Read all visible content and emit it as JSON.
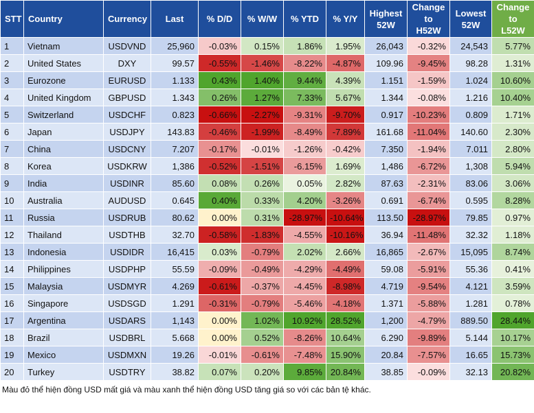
{
  "table": {
    "header": [
      "STT",
      "Country",
      "Currency",
      "Last",
      "% D/D",
      "% W/W",
      "% YTD",
      "% Y/Y",
      "Highest 52W",
      "Change to H52W",
      "Lowest 52W",
      "Change to L52W"
    ],
    "rows": [
      [
        "1",
        "Vietnam",
        "USDVND",
        "25,960",
        "-0.03%",
        "0.15%",
        "1.86%",
        "1.95%",
        "26,043",
        "-0.32%",
        "24,543",
        "5.77%"
      ],
      [
        "2",
        "United States",
        "DXY",
        "99.57",
        "-0.55%",
        "-1.46%",
        "-8.22%",
        "-4.87%",
        "109.96",
        "-9.45%",
        "98.28",
        "1.31%"
      ],
      [
        "3",
        "Eurozone",
        "EURUSD",
        "1.133",
        "0.43%",
        "1.40%",
        "9.44%",
        "4.39%",
        "1.151",
        "-1.59%",
        "1.024",
        "10.60%"
      ],
      [
        "4",
        "United Kingdom",
        "GBPUSD",
        "1.343",
        "0.26%",
        "1.27%",
        "7.33%",
        "5.67%",
        "1.344",
        "-0.08%",
        "1.216",
        "10.40%"
      ],
      [
        "5",
        "Switzerland",
        "USDCHF",
        "0.823",
        "-0.66%",
        "-2.27%",
        "-9.31%",
        "-9.70%",
        "0.917",
        "-10.23%",
        "0.809",
        "1.71%"
      ],
      [
        "6",
        "Japan",
        "USDJPY",
        "143.83",
        "-0.46%",
        "-1.99%",
        "-8.49%",
        "-7.89%",
        "161.68",
        "-11.04%",
        "140.60",
        "2.30%"
      ],
      [
        "7",
        "China",
        "USDCNY",
        "7.207",
        "-0.17%",
        "-0.01%",
        "-1.26%",
        "-0.42%",
        "7.350",
        "-1.94%",
        "7.011",
        "2.80%"
      ],
      [
        "8",
        "Korea",
        "USDKRW",
        "1,386",
        "-0.52%",
        "-1.51%",
        "-6.15%",
        "1.69%",
        "1,486",
        "-6.72%",
        "1,308",
        "5.94%"
      ],
      [
        "9",
        "India",
        "USDINR",
        "85.60",
        "0.08%",
        "0.26%",
        "0.05%",
        "2.82%",
        "87.63",
        "-2.31%",
        "83.06",
        "3.06%"
      ],
      [
        "10",
        "Australia",
        "AUDUSD",
        "0.645",
        "0.40%",
        "0.33%",
        "4.20%",
        "-3.26%",
        "0.691",
        "-6.74%",
        "0.595",
        "8.28%"
      ],
      [
        "11",
        "Russia",
        "USDRUB",
        "80.62",
        "0.00%",
        "0.31%",
        "-28.97%",
        "-10.64%",
        "113.50",
        "-28.97%",
        "79.85",
        "0.97%"
      ],
      [
        "12",
        "Thailand",
        "USDTHB",
        "32.70",
        "-0.58%",
        "-1.83%",
        "-4.55%",
        "-10.16%",
        "36.94",
        "-11.48%",
        "32.32",
        "1.18%"
      ],
      [
        "13",
        "Indonesia",
        "USDIDR",
        "16,415",
        "0.03%",
        "-0.79%",
        "2.02%",
        "2.66%",
        "16,865",
        "-2.67%",
        "15,095",
        "8.74%"
      ],
      [
        "14",
        "Philippines",
        "USDPHP",
        "55.59",
        "-0.09%",
        "-0.49%",
        "-4.29%",
        "-4.49%",
        "59.08",
        "-5.91%",
        "55.36",
        "0.41%"
      ],
      [
        "15",
        "Malaysia",
        "USDMYR",
        "4.269",
        "-0.61%",
        "-0.37%",
        "-4.45%",
        "-8.98%",
        "4.719",
        "-9.54%",
        "4.121",
        "3.59%"
      ],
      [
        "16",
        "Singapore",
        "USDSGD",
        "1.291",
        "-0.31%",
        "-0.79%",
        "-5.46%",
        "-4.18%",
        "1.371",
        "-5.88%",
        "1.281",
        "0.78%"
      ],
      [
        "17",
        "Argentina",
        "USDARS",
        "1,143",
        "0.00%",
        "1.02%",
        "10.92%",
        "28.52%",
        "1,200",
        "-4.79%",
        "889.50",
        "28.44%"
      ],
      [
        "18",
        "Brazil",
        "USDBRL",
        "5.668",
        "0.00%",
        "0.52%",
        "-8.26%",
        "10.64%",
        "6.290",
        "-9.89%",
        "5.144",
        "10.17%"
      ],
      [
        "19",
        "Mexico",
        "USDMXN",
        "19.26",
        "-0.01%",
        "-0.61%",
        "-7.48%",
        "15.90%",
        "20.84",
        "-7.57%",
        "16.65",
        "15.73%"
      ],
      [
        "20",
        "Turkey",
        "USDTRY",
        "38.82",
        "0.07%",
        "0.20%",
        "9.85%",
        "20.84%",
        "38.85",
        "-0.09%",
        "32.13",
        "20.82%"
      ]
    ]
  },
  "note": "Màu đỏ thể hiện đồng USD mất giá và màu xanh thể hiện đồng USD tăng giá so với các bản tệ khác."
}
